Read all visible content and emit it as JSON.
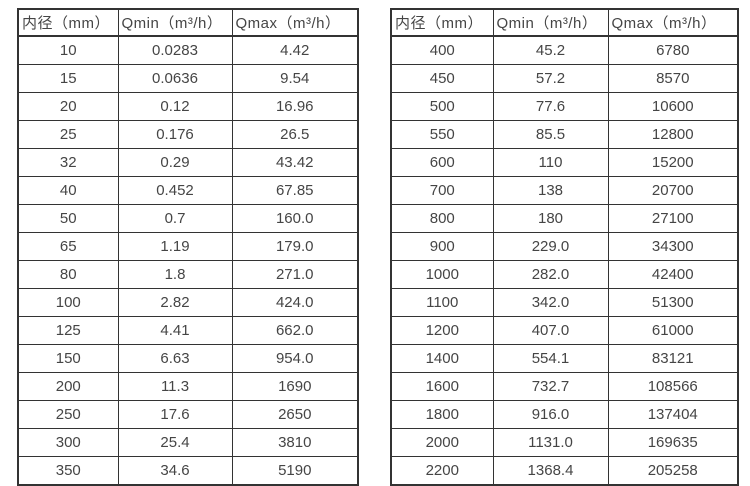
{
  "page": {
    "background_color": "#ffffff",
    "border_color": "#333333",
    "text_color": "#454545"
  },
  "tables": {
    "left": {
      "headers": [
        "内径（mm）",
        "Qmin（m³/h）",
        "Qmax（m³/h）"
      ],
      "rows": [
        [
          "10",
          "0.0283",
          "4.42"
        ],
        [
          "15",
          "0.0636",
          "9.54"
        ],
        [
          "20",
          "0.12",
          "16.96"
        ],
        [
          "25",
          "0.176",
          "26.5"
        ],
        [
          "32",
          "0.29",
          "43.42"
        ],
        [
          "40",
          "0.452",
          "67.85"
        ],
        [
          "50",
          "0.7",
          "160.0"
        ],
        [
          "65",
          "1.19",
          "179.0"
        ],
        [
          "80",
          "1.8",
          "271.0"
        ],
        [
          "100",
          "2.82",
          "424.0"
        ],
        [
          "125",
          "4.41",
          "662.0"
        ],
        [
          "150",
          "6.63",
          "954.0"
        ],
        [
          "200",
          "11.3",
          "1690"
        ],
        [
          "250",
          "17.6",
          "2650"
        ],
        [
          "300",
          "25.4",
          "3810"
        ],
        [
          "350",
          "34.6",
          "5190"
        ]
      ]
    },
    "right": {
      "headers": [
        "内径（mm）",
        "Qmin（m³/h）",
        "Qmax（m³/h）"
      ],
      "rows": [
        [
          "400",
          "45.2",
          "6780"
        ],
        [
          "450",
          "57.2",
          "8570"
        ],
        [
          "500",
          "77.6",
          "10600"
        ],
        [
          "550",
          "85.5",
          "12800"
        ],
        [
          "600",
          "110",
          "15200"
        ],
        [
          "700",
          "138",
          "20700"
        ],
        [
          "800",
          "180",
          "27100"
        ],
        [
          "900",
          "229.0",
          "34300"
        ],
        [
          "1000",
          "282.0",
          "42400"
        ],
        [
          "1100",
          "342.0",
          "51300"
        ],
        [
          "1200",
          "407.0",
          "61000"
        ],
        [
          "1400",
          "554.1",
          "83121"
        ],
        [
          "1600",
          "732.7",
          "108566"
        ],
        [
          "1800",
          "916.0",
          "137404"
        ],
        [
          "2000",
          "1131.0",
          "169635"
        ],
        [
          "2200",
          "1368.4",
          "205258"
        ]
      ]
    }
  }
}
